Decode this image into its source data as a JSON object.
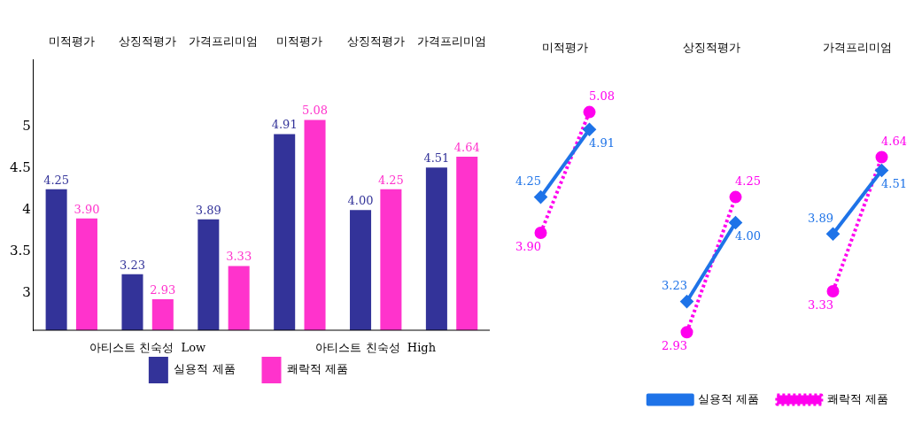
{
  "chart_data": [
    {
      "type": "bar",
      "categories": [
        "미적평가",
        "상징적평가",
        "가격프리미엄",
        "미적평가",
        "상징적평가",
        "가격프리미엄"
      ],
      "series": [
        {
          "name": "실용적 제품",
          "color": "#333399",
          "values": [
            4.25,
            3.23,
            3.89,
            4.91,
            4.0,
            4.51
          ],
          "value_labels": [
            "4.25",
            "3.23",
            "3.89",
            "4.91",
            "4.00",
            "4.51"
          ]
        },
        {
          "name": "쾌락적 제품",
          "color": "#ff33cc",
          "values": [
            3.9,
            2.93,
            3.33,
            5.08,
            4.25,
            4.64
          ],
          "value_labels": [
            "3.90",
            "2.93",
            "3.33",
            "5.08",
            "4.25",
            "4.64"
          ]
        }
      ],
      "ylim": [
        2.56,
        5.8
      ],
      "yticks": [
        3,
        3.5,
        4,
        4.5,
        5
      ],
      "grid": false,
      "legend": "bottom",
      "annotations": [
        "아티스트 친숙성  Low",
        "아티스트 친숙성  High"
      ]
    },
    {
      "type": "line",
      "categories": [
        null,
        null,
        null,
        null,
        null,
        null,
        null,
        null
      ],
      "series": [
        {
          "name": "실용적 제품",
          "color": "#1e73e8",
          "marker": "diamond",
          "line_style": "solid",
          "values": [
            4.25,
            4.91,
            null,
            null,
            null,
            null,
            null,
            null
          ],
          "value_labels": [
            "4.25",
            "4.91",
            null,
            null,
            null,
            null,
            null,
            null
          ]
        },
        {
          "name": "쾌락적 제품",
          "color": "#ff00ee",
          "marker": "circle",
          "line_style": "dotted",
          "values": [
            3.9,
            5.08,
            null,
            null,
            null,
            null,
            null,
            null
          ],
          "value_labels": [
            "3.90",
            "5.08",
            null,
            null,
            null,
            null,
            null,
            null
          ]
        },
        {
          "color": "#1e73e8",
          "marker": "diamond",
          "line_style": "solid",
          "values": [
            null,
            null,
            null,
            3.23,
            4.0,
            null,
            null,
            null
          ],
          "value_labels": [
            null,
            null,
            null,
            "3.23",
            "4.00",
            null,
            null,
            null
          ]
        },
        {
          "color": "#ff00ee",
          "marker": "circle",
          "line_style": "dotted",
          "values": [
            null,
            null,
            null,
            2.93,
            4.25,
            null,
            null,
            null
          ],
          "value_labels": [
            null,
            null,
            null,
            "2.93",
            "4.25",
            null,
            null,
            null
          ]
        },
        {
          "color": "#1e73e8",
          "marker": "diamond",
          "line_style": "solid",
          "values": [
            null,
            null,
            null,
            null,
            null,
            null,
            3.89,
            4.51
          ],
          "value_labels": [
            null,
            null,
            null,
            null,
            null,
            null,
            "3.89",
            "4.51"
          ]
        },
        {
          "color": "#ff00ee",
          "marker": "circle",
          "line_style": "dotted",
          "values": [
            null,
            null,
            null,
            null,
            null,
            null,
            3.33,
            4.64
          ],
          "value_labels": [
            null,
            null,
            null,
            null,
            null,
            null,
            "3.33",
            "4.64"
          ]
        }
      ],
      "grid": false,
      "legend": "bottom right",
      "annotations": [
        "미적평가",
        "상징적평가",
        "가격프리미엄"
      ]
    }
  ]
}
